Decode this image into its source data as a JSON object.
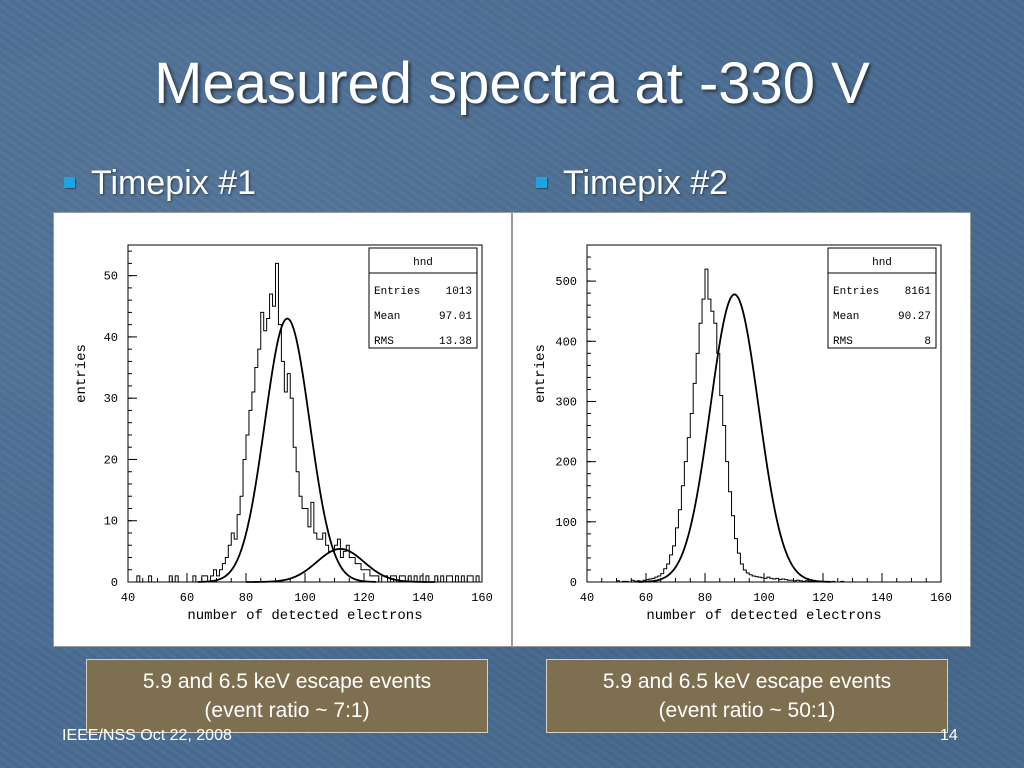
{
  "slide": {
    "title": "Measured spectra at -330 V",
    "footer_left": "IEEE/NSS Oct 22, 2008",
    "page_number": "14",
    "bullets": [
      "Timepix #1",
      "Timepix #2"
    ],
    "captions": [
      {
        "line1": "5.9 and 6.5 keV escape events",
        "line2": "(event ratio ~ 7:1)"
      },
      {
        "line1": "5.9 and 6.5 keV escape events",
        "line2": "(event ratio ~ 50:1)"
      }
    ],
    "colors": {
      "bullet": "#1fa3e0",
      "caption_bg": "#7f6f51",
      "background": "#4a6d92"
    }
  },
  "chart_data": [
    {
      "type": "bar",
      "histogram": true,
      "xlabel": "number of detected electrons",
      "ylabel": "entries",
      "xlim": [
        40,
        160
      ],
      "ylim": [
        0,
        55
      ],
      "xticks": [
        40,
        60,
        80,
        100,
        120,
        140,
        160
      ],
      "yticks": [
        0,
        10,
        20,
        30,
        40,
        50
      ],
      "stats_box": {
        "title": "hnd",
        "entries": "1013",
        "mean": "97.01",
        "rms": "13.38",
        "labels": [
          "Entries",
          "Mean",
          "RMS"
        ]
      },
      "bin_width": 1,
      "bins_x": [
        40,
        41,
        42,
        43,
        44,
        45,
        46,
        47,
        48,
        49,
        50,
        51,
        52,
        53,
        54,
        55,
        56,
        57,
        58,
        59,
        60,
        61,
        62,
        63,
        64,
        65,
        66,
        67,
        68,
        69,
        70,
        71,
        72,
        73,
        74,
        75,
        76,
        77,
        78,
        79,
        80,
        81,
        82,
        83,
        84,
        85,
        86,
        87,
        88,
        89,
        90,
        91,
        92,
        93,
        94,
        95,
        96,
        97,
        98,
        99,
        100,
        101,
        102,
        103,
        104,
        105,
        106,
        107,
        108,
        109,
        110,
        111,
        112,
        113,
        114,
        115,
        116,
        117,
        118,
        119,
        120,
        121,
        122,
        123,
        124,
        125,
        126,
        127,
        128,
        129,
        130,
        131,
        132,
        133,
        134,
        135,
        136,
        137,
        138,
        139,
        140,
        141,
        142,
        143,
        144,
        145,
        146,
        147,
        148,
        149,
        150,
        151,
        152,
        153,
        154,
        155,
        156,
        157,
        158,
        159
      ],
      "counts": [
        0,
        0,
        0,
        1,
        0,
        0,
        0,
        1,
        0,
        0,
        0,
        0,
        0,
        0,
        1,
        0,
        1,
        0,
        0,
        0,
        0,
        0,
        1,
        0,
        0,
        1,
        1,
        0,
        1,
        2,
        1,
        2,
        3,
        4,
        6,
        8,
        7,
        11,
        14,
        20,
        24,
        28,
        31,
        35,
        38,
        44,
        41,
        43,
        47,
        45,
        52,
        42,
        36,
        31,
        34,
        30,
        22,
        18,
        14,
        12,
        12,
        9,
        13,
        8,
        7,
        7,
        8,
        6,
        5,
        5,
        6,
        7,
        4,
        5,
        6,
        4,
        4,
        3,
        3,
        2,
        2,
        2,
        1,
        1,
        1,
        0,
        1,
        1,
        0,
        1,
        1,
        0,
        1,
        1,
        0,
        1,
        0,
        1,
        0,
        1,
        0,
        1,
        0,
        0,
        1,
        0,
        1,
        0,
        1,
        1,
        0,
        1,
        0,
        1,
        0,
        1,
        1,
        0,
        1,
        0
      ],
      "fits": [
        {
          "amplitude": 43,
          "mean": 94,
          "sigma": 7.6
        },
        {
          "amplitude": 5.4,
          "mean": 112,
          "sigma": 8
        }
      ]
    },
    {
      "type": "bar",
      "histogram": true,
      "xlabel": "number of detected electrons",
      "ylabel": "entries",
      "xlim": [
        40,
        160
      ],
      "ylim": [
        0,
        560
      ],
      "xticks": [
        40,
        60,
        80,
        100,
        120,
        140,
        160
      ],
      "yticks": [
        0,
        100,
        200,
        300,
        400,
        500
      ],
      "stats_box": {
        "title": "hnd",
        "entries": "8161",
        "mean": "90.27",
        "rms": "8",
        "labels": [
          "Entries",
          "Mean",
          "RMS"
        ]
      },
      "bin_width": 1,
      "bins_x": [
        50,
        51,
        52,
        53,
        54,
        55,
        56,
        57,
        58,
        59,
        60,
        61,
        62,
        63,
        64,
        65,
        66,
        67,
        68,
        69,
        70,
        71,
        72,
        73,
        74,
        75,
        76,
        77,
        78,
        79,
        80,
        81,
        82,
        83,
        84,
        85,
        86,
        87,
        88,
        89,
        90,
        91,
        92,
        93,
        94,
        95,
        96,
        97,
        98,
        99,
        100,
        101,
        102,
        103,
        104,
        105,
        106,
        107,
        108,
        109,
        110,
        111,
        112,
        113,
        114,
        115,
        116,
        117,
        118,
        119,
        120,
        121,
        122,
        123,
        124,
        125,
        126,
        127,
        128,
        129,
        130
      ],
      "counts": [
        2,
        0,
        1,
        1,
        0,
        3,
        1,
        2,
        1,
        3,
        4,
        5,
        6,
        8,
        10,
        14,
        22,
        30,
        45,
        60,
        90,
        120,
        160,
        200,
        240,
        280,
        330,
        380,
        430,
        470,
        520,
        470,
        450,
        430,
        380,
        310,
        260,
        200,
        150,
        110,
        72,
        48,
        30,
        20,
        15,
        12,
        10,
        9,
        8,
        7,
        6,
        8,
        6,
        5,
        6,
        4,
        5,
        4,
        3,
        3,
        2,
        3,
        2,
        1,
        2,
        1,
        1,
        0,
        1,
        1,
        0,
        1,
        0,
        1,
        0,
        0,
        1,
        0,
        0,
        0,
        0
      ],
      "counts_offset_note": "",
      "fits": [
        {
          "amplitude": 478,
          "mean": 90,
          "sigma": 8.2
        }
      ]
    }
  ]
}
